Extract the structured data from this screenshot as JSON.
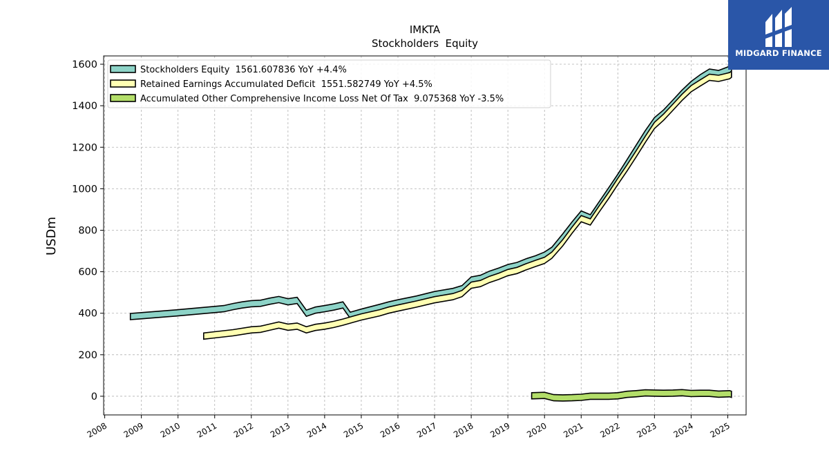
{
  "chart_data": {
    "type": "line",
    "title": "IMKTA",
    "subtitle": "Stockholders  Equity",
    "ylabel": "USDm",
    "xlabel": "",
    "xlim": [
      2007.97,
      2025.5
    ],
    "ylim": [
      -90,
      1640
    ],
    "yticks": [
      0,
      200,
      400,
      600,
      800,
      1000,
      1200,
      1400,
      1600
    ],
    "xticks": [
      2008,
      2009,
      2010,
      2011,
      2012,
      2013,
      2014,
      2015,
      2016,
      2017,
      2018,
      2019,
      2020,
      2021,
      2022,
      2023,
      2024,
      2025
    ],
    "grid": true,
    "legend_position": "top-left",
    "series": [
      {
        "name": "Stockholders Equity",
        "legend": "Stockholders Equity  1561.607836 YoY +4.4%",
        "color": "#8dd3c7",
        "points": [
          [
            2008.7,
            384
          ],
          [
            2009.0,
            388
          ],
          [
            2009.5,
            395
          ],
          [
            2010.0,
            402
          ],
          [
            2010.5,
            410
          ],
          [
            2011.0,
            418
          ],
          [
            2011.25,
            422
          ],
          [
            2011.5,
            432
          ],
          [
            2011.75,
            440
          ],
          [
            2012.0,
            446
          ],
          [
            2012.25,
            448
          ],
          [
            2012.5,
            458
          ],
          [
            2012.75,
            466
          ],
          [
            2013.0,
            455
          ],
          [
            2013.25,
            462
          ],
          [
            2013.5,
            400
          ],
          [
            2013.75,
            415
          ],
          [
            2014.0,
            422
          ],
          [
            2014.25,
            430
          ],
          [
            2014.5,
            440
          ],
          [
            2014.7,
            390
          ],
          [
            2015.0,
            405
          ],
          [
            2015.5,
            428
          ],
          [
            2015.75,
            440
          ],
          [
            2016.0,
            450
          ],
          [
            2016.5,
            468
          ],
          [
            2017.0,
            490
          ],
          [
            2017.5,
            505
          ],
          [
            2017.75,
            518
          ],
          [
            2018.0,
            560
          ],
          [
            2018.25,
            568
          ],
          [
            2018.5,
            588
          ],
          [
            2018.75,
            603
          ],
          [
            2019.0,
            620
          ],
          [
            2019.25,
            630
          ],
          [
            2019.5,
            648
          ],
          [
            2019.75,
            662
          ],
          [
            2020.0,
            680
          ],
          [
            2020.2,
            703
          ],
          [
            2020.5,
            768
          ],
          [
            2020.75,
            825
          ],
          [
            2021.0,
            878
          ],
          [
            2021.25,
            860
          ],
          [
            2021.5,
            925
          ],
          [
            2021.75,
            990
          ],
          [
            2022.0,
            1055
          ],
          [
            2022.25,
            1125
          ],
          [
            2022.5,
            1195
          ],
          [
            2022.75,
            1265
          ],
          [
            2023.0,
            1328
          ],
          [
            2023.25,
            1365
          ],
          [
            2023.5,
            1412
          ],
          [
            2023.75,
            1460
          ],
          [
            2024.0,
            1502
          ],
          [
            2024.25,
            1535
          ],
          [
            2024.5,
            1562
          ],
          [
            2024.75,
            1555
          ],
          [
            2025.05,
            1575
          ],
          [
            2025.1,
            1561.6
          ]
        ]
      },
      {
        "name": "Retained Earnings Accumulated Deficit",
        "legend": "Retained Earnings Accumulated Deficit  1551.582749 YoY +4.5%",
        "color": "#ffffb3",
        "points": [
          [
            2010.7,
            290
          ],
          [
            2011.0,
            296
          ],
          [
            2011.5,
            306
          ],
          [
            2012.0,
            320
          ],
          [
            2012.25,
            323
          ],
          [
            2012.5,
            333
          ],
          [
            2012.75,
            343
          ],
          [
            2013.0,
            333
          ],
          [
            2013.25,
            338
          ],
          [
            2013.5,
            320
          ],
          [
            2013.75,
            332
          ],
          [
            2014.0,
            338
          ],
          [
            2014.25,
            346
          ],
          [
            2014.5,
            357
          ],
          [
            2014.7,
            367
          ],
          [
            2015.0,
            382
          ],
          [
            2015.5,
            402
          ],
          [
            2015.75,
            415
          ],
          [
            2016.0,
            425
          ],
          [
            2016.5,
            444
          ],
          [
            2017.0,
            465
          ],
          [
            2017.5,
            480
          ],
          [
            2017.75,
            495
          ],
          [
            2018.0,
            535
          ],
          [
            2018.25,
            543
          ],
          [
            2018.5,
            563
          ],
          [
            2018.75,
            578
          ],
          [
            2019.0,
            596
          ],
          [
            2019.25,
            606
          ],
          [
            2019.5,
            624
          ],
          [
            2019.75,
            640
          ],
          [
            2020.0,
            655
          ],
          [
            2020.2,
            680
          ],
          [
            2020.5,
            740
          ],
          [
            2020.75,
            800
          ],
          [
            2021.0,
            856
          ],
          [
            2021.25,
            840
          ],
          [
            2021.5,
            905
          ],
          [
            2021.75,
            968
          ],
          [
            2022.0,
            1035
          ],
          [
            2022.25,
            1100
          ],
          [
            2022.5,
            1168
          ],
          [
            2022.75,
            1238
          ],
          [
            2023.0,
            1305
          ],
          [
            2023.25,
            1345
          ],
          [
            2023.5,
            1392
          ],
          [
            2023.75,
            1440
          ],
          [
            2024.0,
            1482
          ],
          [
            2024.25,
            1510
          ],
          [
            2024.5,
            1537
          ],
          [
            2024.75,
            1532
          ],
          [
            2025.05,
            1545
          ],
          [
            2025.1,
            1551.6
          ]
        ]
      },
      {
        "name": "Accumulated Other Comprehensive Income Loss Net Of Tax",
        "legend": "Accumulated Other Comprehensive Income Loss Net Of Tax  9.075368 YoY -3.5%",
        "color": "#b3de69",
        "points": [
          [
            2019.65,
            2
          ],
          [
            2020.0,
            4
          ],
          [
            2020.25,
            -7
          ],
          [
            2020.5,
            -8
          ],
          [
            2020.75,
            -7
          ],
          [
            2021.0,
            -5
          ],
          [
            2021.25,
            0
          ],
          [
            2021.5,
            0
          ],
          [
            2021.75,
            0
          ],
          [
            2022.0,
            2
          ],
          [
            2022.25,
            9
          ],
          [
            2022.5,
            12
          ],
          [
            2022.75,
            16
          ],
          [
            2023.0,
            15
          ],
          [
            2023.25,
            14
          ],
          [
            2023.5,
            15
          ],
          [
            2023.75,
            17
          ],
          [
            2024.0,
            13
          ],
          [
            2024.25,
            14
          ],
          [
            2024.5,
            14
          ],
          [
            2024.75,
            10
          ],
          [
            2025.05,
            12
          ],
          [
            2025.1,
            9.1
          ]
        ]
      }
    ]
  },
  "logo": {
    "text": "MIDGARD FINANCE"
  }
}
